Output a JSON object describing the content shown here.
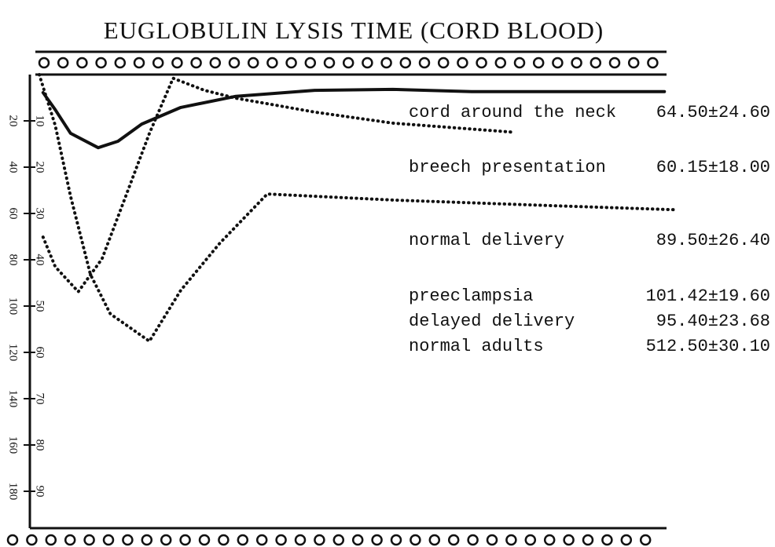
{
  "chart_data": {
    "type": "line",
    "title": "EUGLOBULIN LYSIS TIME (CORD BLOOD)",
    "xlim": [
      0,
      100
    ],
    "ylim": [
      0,
      100
    ],
    "yticks": [
      10,
      20,
      30,
      40,
      50,
      60,
      70,
      80,
      90
    ],
    "y2lim": [
      0,
      200
    ],
    "y2ticks": [
      20,
      40,
      60,
      80,
      100,
      120,
      140,
      160,
      180
    ],
    "series": [
      {
        "color": "#111",
        "dashed": false,
        "x": [
          1.2,
          3.1,
          5.5,
          9.8,
          12.9,
          16.6,
          22.7,
          31.3,
          43.6,
          55.8,
          68.1,
          98.2
        ],
        "values": [
          3.9,
          7.6,
          12.7,
          15.8,
          14.4,
          10.7,
          7.1,
          4.7,
          3.4,
          3.2,
          3.7,
          3.7
        ]
      },
      {
        "color": "#111",
        "dashed": true,
        "x": [
          1.2,
          3.1,
          6.7,
          10.4,
          14.1,
          17.8,
          21.5,
          26.4,
          31.3,
          43.6,
          55.8,
          74.2
        ],
        "values": [
          35.1,
          41.5,
          46.9,
          39.8,
          26.3,
          12.7,
          0.8,
          3.4,
          5.1,
          8.1,
          10.5,
          12.4
        ]
      },
      {
        "color": "#111",
        "dashed": true,
        "x": [
          0.6,
          3.1,
          5.5,
          8.6,
          11.7,
          17.8,
          22.7,
          28.8,
          36.2,
          55.8,
          80.4,
          100
        ],
        "values": [
          0,
          11,
          26.3,
          43.2,
          51.7,
          57.6,
          46.6,
          36.4,
          25.8,
          27.1,
          28.3,
          29.2
        ]
      }
    ],
    "annotations": [
      {
        "label": "cord around the neck",
        "value": "64.50±24.60"
      },
      {
        "label": "breech presentation",
        "value": "60.15±18.00"
      },
      {
        "label": "normal delivery",
        "value": "89.50±26.40"
      },
      {
        "label": "preeclampsia",
        "value": "101.42±19.60"
      },
      {
        "label": "delayed delivery",
        "value": "95.40±23.68"
      },
      {
        "label": "normal adults",
        "value": "512.50±30.10"
      }
    ]
  }
}
